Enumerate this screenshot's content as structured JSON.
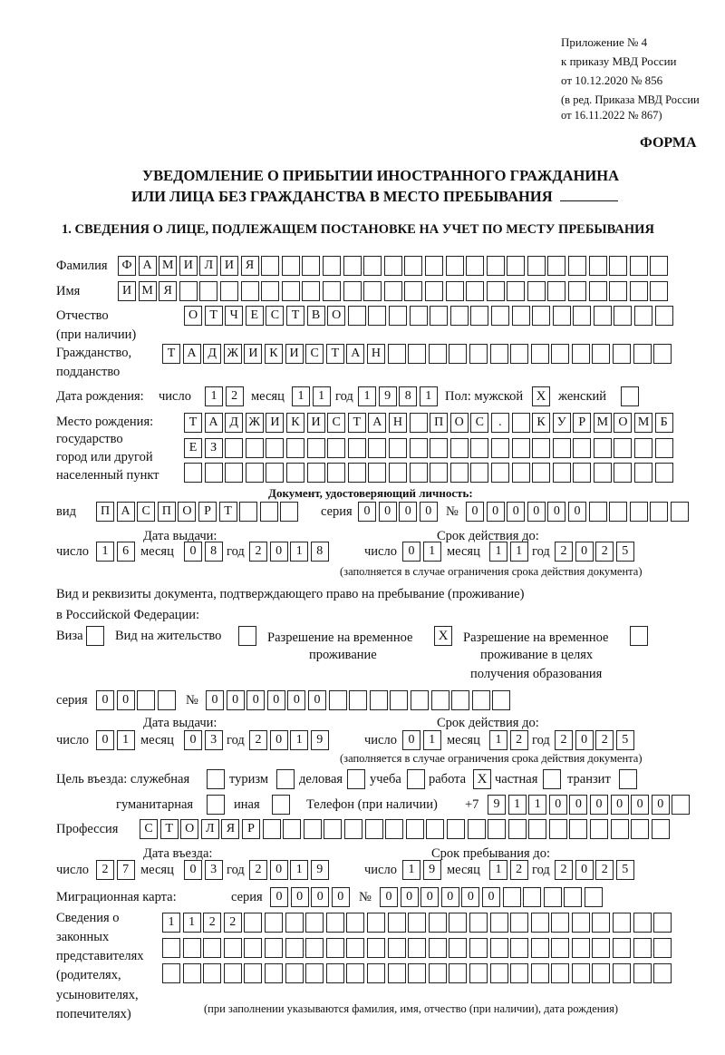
{
  "header": {
    "appendix": "Приложение № 4",
    "order": "к приказу МВД России",
    "order_date": "от 10.12.2020 № 856",
    "edition_1": "(в ред. Приказа МВД России",
    "edition_2": "от 16.11.2022 № 867)",
    "form_label": "ФОРМА",
    "title_1": "УВЕДОМЛЕНИЕ О ПРИБЫТИИ ИНОСТРАННОГО ГРАЖДАНИНА",
    "title_2": "ИЛИ ЛИЦА БЕЗ ГРАЖДАНСТВА В МЕСТО ПРЕБЫВАНИЯ",
    "section_1": "1. СВЕДЕНИЯ О ЛИЦЕ, ПОДЛЕЖАЩЕМ ПОСТАНОВКЕ НА УЧЕТ ПО МЕСТУ ПРЕБЫВАНИЯ"
  },
  "labels": {
    "surname": "Фамилия",
    "name": "Имя",
    "patronymic_1": "Отчество",
    "patronymic_2": "(при наличии)",
    "citizenship_1": "Гражданство,",
    "citizenship_2": "подданство",
    "birth_date": "Дата рождения:",
    "day": "число",
    "month": "месяц",
    "year": "год",
    "sex": "Пол: мужской",
    "female": "женский",
    "birthplace_1": "Место рождения:",
    "birthplace_2": "государство",
    "birthplace_3": "город или другой",
    "birthplace_4": "населенный пункт",
    "id_doc": "Документ, удостоверяющий личность:",
    "kind": "вид",
    "series": "серия",
    "number": "№",
    "issue_date": "Дата выдачи:",
    "valid_until": "Срок действия до:",
    "validity_note": "(заполняется в случае ограничения срока действия документа)",
    "right_doc_1": "Вид и реквизиты документа, подтверждающего право на пребывание (проживание)",
    "right_doc_2": "в Российской Федерации:",
    "visa": "Виза",
    "residence": "Вид на жительство",
    "temp_permit_1": "Разрешение на временное",
    "temp_permit_2": "проживание",
    "edu_permit_1": "Разрешение на временное",
    "edu_permit_2": "проживание в целях",
    "edu_permit_3": "получения образования",
    "purpose": "Цель въезда: служебная",
    "tourism": "туризм",
    "business": "деловая",
    "study": "учеба",
    "work": "работа",
    "private": "частная",
    "transit": "транзит",
    "humanitarian": "гуманитарная",
    "other": "иная",
    "phone": "Телефон (при наличии)",
    "phone_prefix": "+7",
    "profession": "Профессия",
    "entry_date": "Дата въезда:",
    "stay_until": "Срок пребывания до:",
    "migration_card": "Миграционная карта:",
    "reps_1": "Сведения о",
    "reps_2": "законных",
    "reps_3": "представителях",
    "reps_4": "(родителях,",
    "reps_5": "усыновителях,",
    "reps_6": "попечителях)",
    "reps_note": "(при заполнении указываются фамилия, имя, отчество (при наличии), дата рождения)"
  },
  "person": {
    "surname": "ФАМИЛИЯ",
    "name": "ИМЯ",
    "patronymic": "ОТЧЕСТВО",
    "citizenship": "ТАДЖИКИСТАН",
    "birth_day": "12",
    "birth_month": "11",
    "birth_year": "1981",
    "sex_male": "X",
    "sex_female": "",
    "birthplace_1": "ТАДЖИКИСТАН ПОС. КУРМОМБ",
    "birthplace_2": "ЕЗ",
    "birthplace_3": ""
  },
  "id_document": {
    "kind": "ПАСПОРТ",
    "series": "0000",
    "number": "000000",
    "issue_day": "16",
    "issue_month": "08",
    "issue_year": "2018",
    "valid_day": "01",
    "valid_month": "11",
    "valid_year": "2025"
  },
  "right_document": {
    "visa": "",
    "residence": "",
    "temp_permit": "X",
    "edu_permit": "",
    "series": "00",
    "number": "000000",
    "issue_day": "01",
    "issue_month": "03",
    "issue_year": "2019",
    "valid_day": "01",
    "valid_month": "12",
    "valid_year": "2025"
  },
  "purpose": {
    "official": "",
    "tourism": "",
    "business": "",
    "study": "",
    "work": "X",
    "private": "",
    "transit": "",
    "humanitarian": "",
    "other": ""
  },
  "phone": "911000000",
  "profession": "СТОЛЯР",
  "entry": {
    "entry_day": "27",
    "entry_month": "03",
    "entry_year": "2019",
    "stay_day": "19",
    "stay_month": "12",
    "stay_year": "2025"
  },
  "migration_card": {
    "series": "0000",
    "number": "000000"
  },
  "representatives": {
    "row_1": "1122",
    "row_2": "",
    "row_3": ""
  }
}
